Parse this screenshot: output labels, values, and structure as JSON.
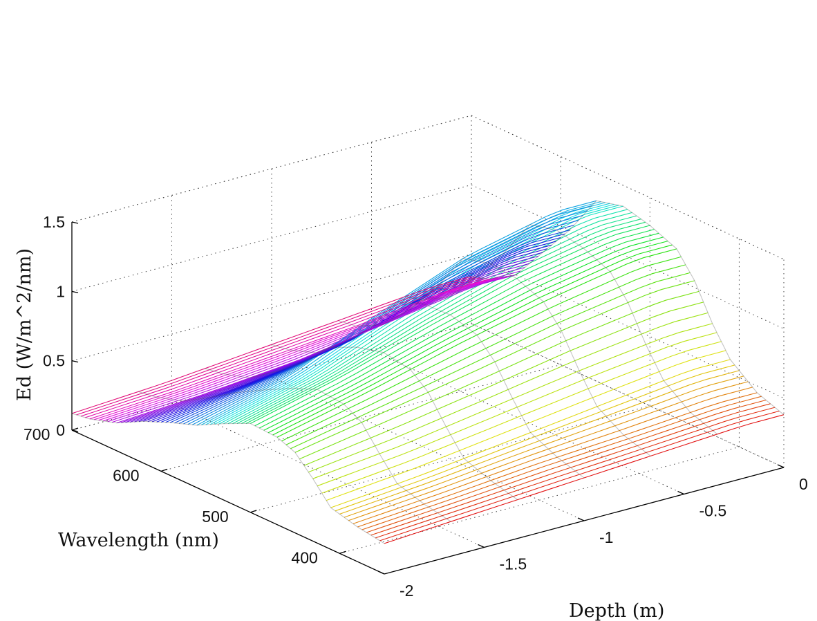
{
  "chart_data": {
    "type": "surface",
    "title": "",
    "xlabel": "Wavelength (nm)",
    "ylabel": "Depth (m)",
    "zlabel": "Ed (W/m^2/nm)",
    "wavelength_ticks": [
      700,
      600,
      500,
      400
    ],
    "depth_ticks": [
      0,
      -0.5,
      -1,
      -1.5,
      -2
    ],
    "ed_ticks": [
      0,
      0.5,
      1,
      1.5
    ],
    "wavelength_range": [
      350,
      700
    ],
    "depth_range": [
      -2,
      0
    ],
    "ed_range": [
      0,
      1.5
    ],
    "grid": true,
    "colormap": "hsv",
    "depths": [
      -2.0,
      -1.85,
      -1.7,
      -1.55,
      -1.4,
      -1.25,
      -1.1,
      -0.95,
      -0.8,
      -0.65,
      -0.5,
      -0.35,
      -0.2
    ],
    "wavelengths": [
      350,
      380,
      410,
      430,
      450,
      470,
      500,
      530,
      560,
      590,
      620,
      650,
      680,
      700
    ],
    "ed_profiles": [
      {
        "depth": -2.0,
        "ed": [
          0.22,
          0.25,
          0.3,
          0.45,
          0.58,
          0.63,
          0.64,
          0.55,
          0.45,
          0.38,
          0.3,
          0.2,
          0.14,
          0.12
        ]
      },
      {
        "depth": -1.55,
        "ed": [
          0.26,
          0.3,
          0.36,
          0.52,
          0.7,
          0.78,
          0.8,
          0.72,
          0.62,
          0.5,
          0.36,
          0.24,
          0.18,
          0.16
        ]
      },
      {
        "depth": -1.1,
        "ed": [
          0.3,
          0.36,
          0.44,
          0.62,
          0.82,
          0.95,
          1.0,
          0.98,
          0.9,
          0.62,
          0.45,
          0.3,
          0.24,
          0.22
        ]
      },
      {
        "depth": -0.65,
        "ed": [
          0.34,
          0.4,
          0.52,
          0.72,
          0.95,
          1.1,
          1.18,
          1.2,
          1.15,
          0.85,
          0.6,
          0.4,
          0.3,
          0.28
        ]
      },
      {
        "depth": -0.2,
        "ed": [
          0.38,
          0.45,
          0.6,
          0.8,
          1.05,
          1.22,
          1.3,
          1.35,
          1.3,
          1.0,
          0.75,
          0.5,
          0.38,
          0.34
        ]
      }
    ]
  }
}
